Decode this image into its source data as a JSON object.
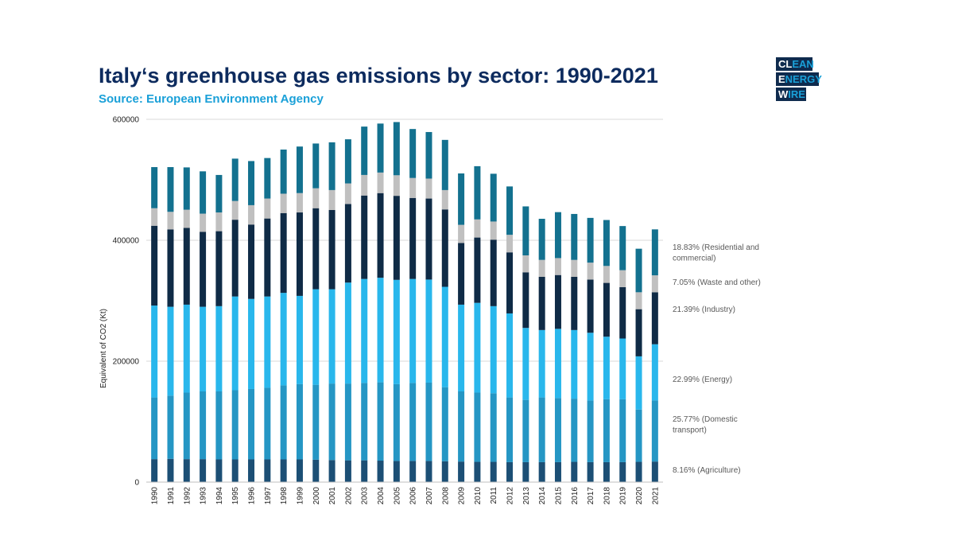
{
  "header": {
    "title": "Italy‘s greenhouse gas emissions by sector: 1990-2021",
    "subtitle": "Source: European Environment Agency"
  },
  "logo": {
    "line1": [
      "CL",
      "EAN"
    ],
    "line2": [
      "E",
      "NERGY"
    ],
    "line3": [
      "W",
      "IRE"
    ]
  },
  "chart_data": {
    "type": "bar",
    "stacked": true,
    "title": "Italy‘s greenhouse gas emissions by sector: 1990-2021",
    "ylabel": "Equivalent of CO2 (Kt)",
    "xlabel": "",
    "ylim": [
      0,
      600000
    ],
    "yticks": [
      "0",
      "200000",
      "400000",
      "600000"
    ],
    "categories": [
      "1990",
      "1991",
      "1992",
      "1993",
      "1994",
      "1995",
      "1996",
      "1997",
      "1998",
      "1999",
      "2000",
      "2001",
      "2002",
      "2003",
      "2004",
      "2005",
      "2006",
      "2007",
      "2008",
      "2009",
      "2010",
      "2011",
      "2012",
      "2013",
      "2014",
      "2015",
      "2016",
      "2017",
      "2018",
      "2019",
      "2020",
      "2021"
    ],
    "series": [
      {
        "name": "8.16% (Agriculture)",
        "color": "#1c4f75",
        "values": [
          38000,
          38500,
          38000,
          38000,
          37500,
          37500,
          37500,
          37500,
          37500,
          37500,
          37000,
          36500,
          36000,
          36000,
          35500,
          35000,
          35000,
          35000,
          34500,
          34000,
          33500,
          33500,
          33000,
          33000,
          33000,
          33000,
          33500,
          33000,
          33000,
          33000,
          33500,
          34000
        ]
      },
      {
        "name": "25.77% (Domestic transport)",
        "color": "#2596c4",
        "values": [
          102000,
          104500,
          110000,
          112000,
          112500,
          114500,
          116500,
          118500,
          122500,
          124500,
          124000,
          126500,
          127000,
          128000,
          129500,
          127000,
          129000,
          129500,
          122500,
          116000,
          114500,
          113500,
          107000,
          103000,
          107000,
          106000,
          104500,
          102000,
          104000,
          104000,
          86500,
          101000
        ]
      },
      {
        "name": "22.99% (Energy)",
        "color": "#29b7ec",
        "values": [
          152000,
          147000,
          145500,
          140000,
          141000,
          155000,
          149000,
          151000,
          153000,
          146000,
          158000,
          156000,
          167000,
          172000,
          173000,
          172500,
          172000,
          170500,
          166000,
          143500,
          148500,
          144000,
          139000,
          119000,
          111500,
          114500,
          113500,
          112000,
          103500,
          100500,
          88000,
          93000
        ]
      },
      {
        "name": "21.39% (Industry)",
        "color": "#0f2b46",
        "values": [
          132000,
          128000,
          127000,
          124000,
          124000,
          127000,
          123000,
          129000,
          132000,
          138000,
          134000,
          131000,
          130000,
          138000,
          140000,
          139000,
          134000,
          134000,
          128000,
          102000,
          108000,
          110000,
          101000,
          92000,
          88000,
          89000,
          88000,
          88000,
          89000,
          85000,
          78000,
          86000
        ]
      },
      {
        "name": "7.05% (Waste and other)",
        "color": "#c0c0c0",
        "values": [
          29000,
          29000,
          30000,
          30000,
          31000,
          31000,
          32000,
          33000,
          32000,
          32000,
          33000,
          33000,
          34000,
          34000,
          34000,
          34000,
          33000,
          33000,
          32000,
          30000,
          30000,
          30000,
          29000,
          28000,
          28000,
          28000,
          28000,
          28000,
          28000,
          28000,
          28000,
          28000
        ]
      },
      {
        "name": "18.83% (Residential and commercial)",
        "color": "#13718f",
        "values": [
          68000,
          74000,
          70000,
          70000,
          62000,
          70000,
          73000,
          67000,
          73000,
          77000,
          74000,
          79000,
          73000,
          80000,
          81000,
          88000,
          81000,
          77000,
          83000,
          85000,
          88000,
          79000,
          80000,
          81000,
          68000,
          76000,
          76000,
          74000,
          76000,
          73000,
          72000,
          76000
        ]
      }
    ],
    "legend_order": [
      "18.83% (Residential and commercial)",
      "7.05% (Waste and other)",
      "21.39% (Industry)",
      "22.99% (Energy)",
      "25.77% (Domestic transport)",
      "8.16% (Agriculture)"
    ],
    "legend_placement": "right"
  }
}
